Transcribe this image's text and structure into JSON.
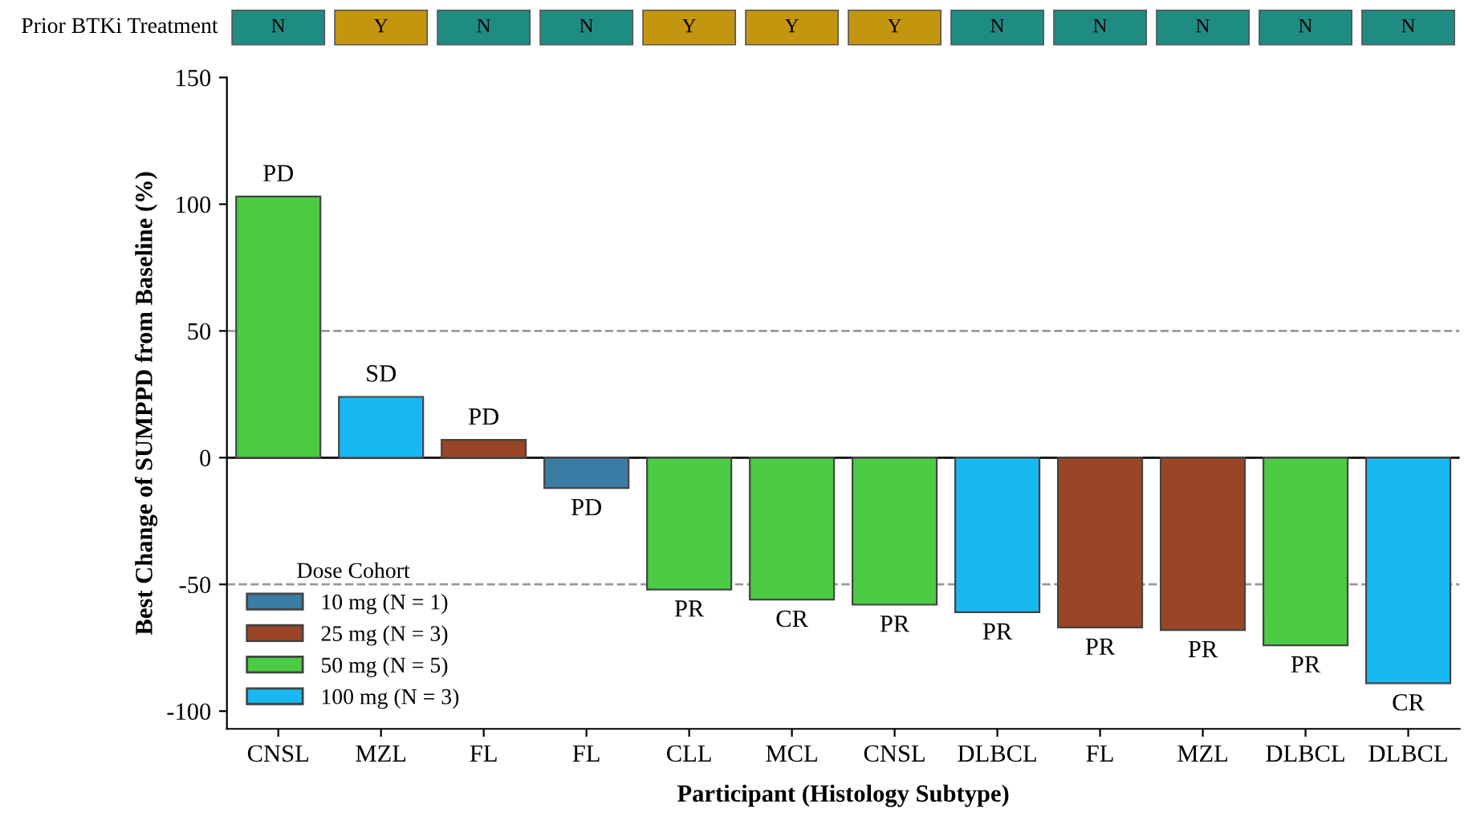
{
  "chart_data": [
    {
      "type": "other",
      "ylabel": "Prior BTKi Treatment",
      "categories": [
        "N",
        "Y",
        "N",
        "N",
        "Y",
        "Y",
        "Y",
        "N",
        "N",
        "N",
        "N",
        "N"
      ],
      "colors": [
        "#1f8c84",
        "#c4960f",
        "#1f8c84",
        "#1f8c84",
        "#c4960f",
        "#c4960f",
        "#c4960f",
        "#1f8c84",
        "#1f8c84",
        "#1f8c84",
        "#1f8c84",
        "#1f8c84"
      ]
    },
    {
      "type": "bar",
      "stacked": true,
      "xlabel": "Participant (Histology Subtype)",
      "ylabel": "Best Change of SUMPPD from Baseline (%)",
      "categories": [
        "CNSL",
        "MZL",
        "FL",
        "FL",
        "CLL",
        "MCL",
        "CNSL",
        "DLBCL",
        "FL",
        "MZL",
        "DLBCL",
        "DLBCL"
      ],
      "series": [
        {
          "name": "10 mg (N = 1)",
          "color": "#3a7ca3",
          "values": [
            null,
            null,
            null,
            -12,
            null,
            null,
            null,
            null,
            null,
            null,
            null,
            null
          ],
          "value_labels": [
            null,
            null,
            null,
            "PD",
            null,
            null,
            null,
            null,
            null,
            null,
            null,
            null
          ]
        },
        {
          "name": "25 mg (N = 3)",
          "color": "#9a4526",
          "values": [
            null,
            null,
            7,
            null,
            null,
            null,
            null,
            null,
            -67,
            -68,
            null,
            null
          ],
          "value_labels": [
            null,
            null,
            "PD",
            null,
            null,
            null,
            null,
            null,
            "PR",
            "PR",
            null,
            null
          ]
        },
        {
          "name": "50 mg (N = 5)",
          "color": "#4ccc45",
          "values": [
            103,
            null,
            null,
            null,
            -52,
            -56,
            -58,
            null,
            null,
            null,
            -74,
            null
          ],
          "value_labels": [
            "PD",
            null,
            null,
            null,
            "PR",
            "CR",
            "PR",
            null,
            null,
            null,
            "PR",
            null
          ]
        },
        {
          "name": "100 mg (N = 3)",
          "color": "#18b9f2",
          "values": [
            null,
            24,
            null,
            null,
            null,
            null,
            null,
            -61,
            null,
            null,
            null,
            -89
          ],
          "value_labels": [
            null,
            "SD",
            null,
            null,
            null,
            null,
            null,
            "PR",
            null,
            null,
            null,
            "CR"
          ]
        }
      ],
      "ylim": [
        -107,
        150
      ],
      "yticks": [
        -100,
        -50,
        0,
        50,
        100,
        150
      ],
      "ref_lines": [
        {
          "axis": "y",
          "value": 50,
          "line_style": "dashed",
          "color": "#999999"
        },
        {
          "axis": "y",
          "value": -50,
          "line_style": "dashed",
          "color": "#999999"
        },
        {
          "axis": "y",
          "value": 0,
          "line_style": "solid",
          "color": "#000000"
        }
      ],
      "legend": "bottom left",
      "legend_title": "Dose Cohort"
    }
  ]
}
